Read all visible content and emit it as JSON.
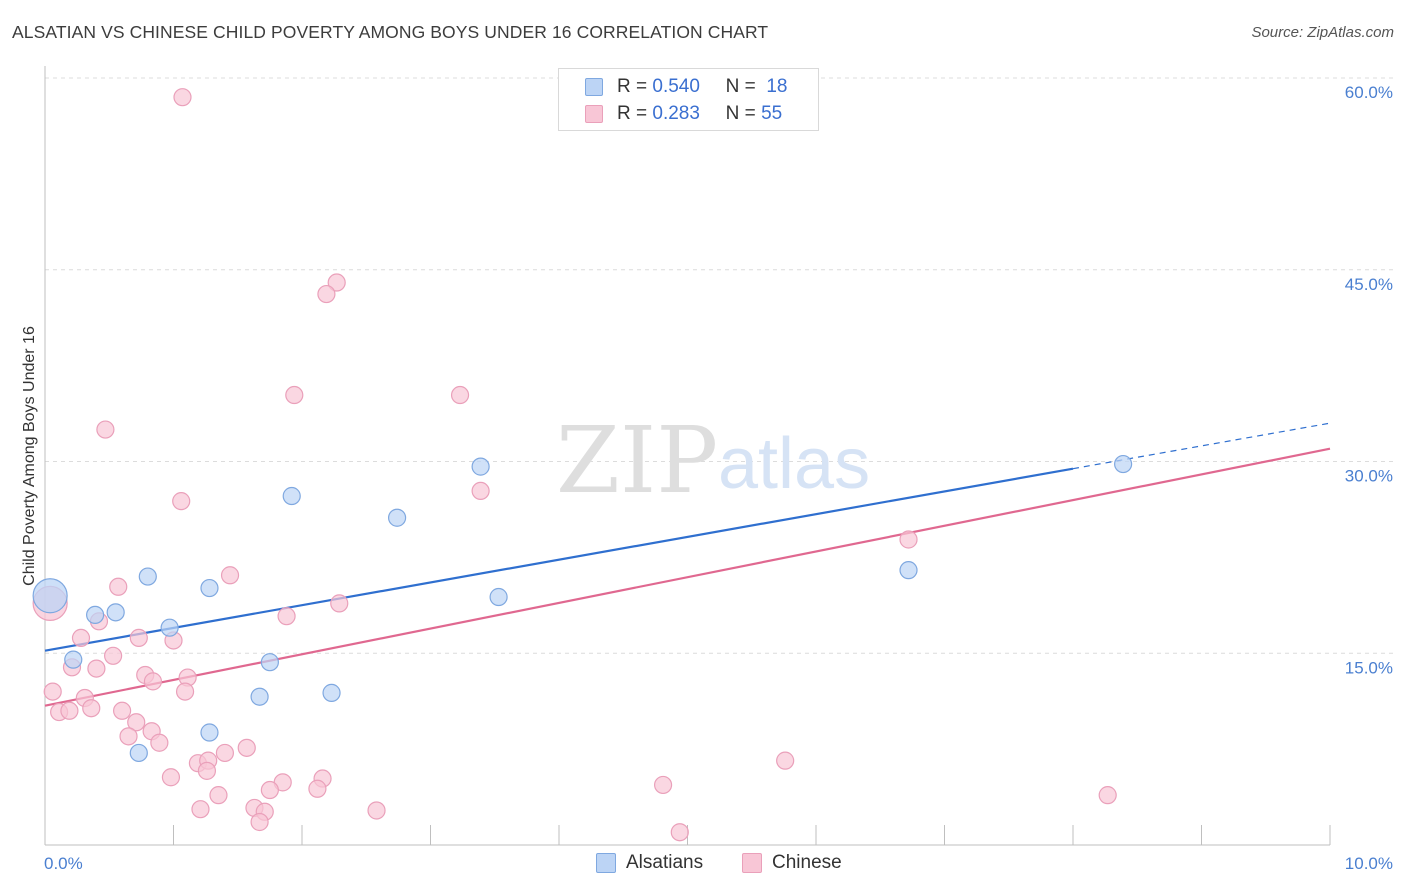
{
  "title": "ALSATIAN VS CHINESE CHILD POVERTY AMONG BOYS UNDER 16 CORRELATION CHART",
  "source": "Source: ZipAtlas.com",
  "watermark": {
    "zip": "ZIP",
    "atlas": "atlas"
  },
  "legend_top": {
    "rows": [
      {
        "r_label": "R =",
        "r_value": "0.540",
        "n_label": "N =",
        "n_value": "18"
      },
      {
        "r_label": "R =",
        "r_value": "0.283",
        "n_label": "N =",
        "n_value": "55"
      }
    ]
  },
  "legend_bottom": {
    "alsatians": "Alsatians",
    "chinese": "Chinese"
  },
  "colors": {
    "alsatian_fill": "#bcd4f5",
    "alsatian_stroke": "#7fa8e0",
    "alsatian_line": "#2f6fcf",
    "chinese_fill": "#f8c6d6",
    "chinese_stroke": "#eaa0ba",
    "chinese_line": "#e06890",
    "tick_text": "#4a7fd0",
    "grid": "#dcdcdc"
  },
  "chart_data": {
    "type": "scatter",
    "title": "ALSATIAN VS CHINESE CHILD POVERTY AMONG BOYS UNDER 16 CORRELATION CHART",
    "xlabel": "",
    "ylabel": "Child Poverty Among Boys Under 16",
    "xlim": [
      0,
      10
    ],
    "ylim": [
      0,
      60
    ],
    "x_tick_labels": [
      {
        "value": 0,
        "label": "0.0%"
      },
      {
        "value": 10,
        "label": "10.0%"
      }
    ],
    "y_tick_labels": [
      {
        "value": 15,
        "label": "15.0%"
      },
      {
        "value": 30,
        "label": "30.0%"
      },
      {
        "value": 45,
        "label": "45.0%"
      },
      {
        "value": 60,
        "label": "60.0%"
      }
    ],
    "y_gridlines": [
      15,
      30,
      45,
      60
    ],
    "series": [
      {
        "name": "Alsatians",
        "r": 0.54,
        "n": 18,
        "trend": {
          "x0": 0,
          "y0": 15.2,
          "x1": 10,
          "y1": 33.0,
          "solid_until": 8.0
        },
        "points": [
          {
            "x": 0.04,
            "y": 19.5,
            "big": true
          },
          {
            "x": 0.22,
            "y": 14.5
          },
          {
            "x": 0.39,
            "y": 18.0
          },
          {
            "x": 0.55,
            "y": 18.2
          },
          {
            "x": 0.8,
            "y": 21.0
          },
          {
            "x": 0.97,
            "y": 17.0
          },
          {
            "x": 1.28,
            "y": 20.1
          },
          {
            "x": 1.92,
            "y": 27.3
          },
          {
            "x": 2.74,
            "y": 25.6
          },
          {
            "x": 3.39,
            "y": 29.6
          },
          {
            "x": 3.53,
            "y": 19.4
          },
          {
            "x": 6.72,
            "y": 21.5
          },
          {
            "x": 8.39,
            "y": 29.8
          },
          {
            "x": 0.73,
            "y": 7.2
          },
          {
            "x": 1.28,
            "y": 8.8
          },
          {
            "x": 1.67,
            "y": 11.6
          },
          {
            "x": 1.75,
            "y": 14.3
          },
          {
            "x": 2.23,
            "y": 11.9
          }
        ]
      },
      {
        "name": "Chinese",
        "r": 0.283,
        "n": 55,
        "trend": {
          "x0": 0,
          "y0": 10.9,
          "x1": 10,
          "y1": 31.0
        },
        "points": [
          {
            "x": 0.04,
            "y": 18.9,
            "big": true
          },
          {
            "x": 1.07,
            "y": 58.5
          },
          {
            "x": 2.27,
            "y": 44.0
          },
          {
            "x": 2.19,
            "y": 43.1
          },
          {
            "x": 1.94,
            "y": 35.2
          },
          {
            "x": 3.23,
            "y": 35.2
          },
          {
            "x": 0.47,
            "y": 32.5
          },
          {
            "x": 1.06,
            "y": 26.9
          },
          {
            "x": 3.39,
            "y": 27.7
          },
          {
            "x": 6.72,
            "y": 23.9
          },
          {
            "x": 0.57,
            "y": 20.2
          },
          {
            "x": 1.44,
            "y": 21.1
          },
          {
            "x": 0.42,
            "y": 17.5
          },
          {
            "x": 1.88,
            "y": 17.9
          },
          {
            "x": 2.29,
            "y": 18.9
          },
          {
            "x": 0.28,
            "y": 16.2
          },
          {
            "x": 0.73,
            "y": 16.2
          },
          {
            "x": 1.0,
            "y": 16.0
          },
          {
            "x": 0.53,
            "y": 14.8
          },
          {
            "x": 0.21,
            "y": 13.9
          },
          {
            "x": 0.4,
            "y": 13.8
          },
          {
            "x": 0.78,
            "y": 13.3
          },
          {
            "x": 0.84,
            "y": 12.8
          },
          {
            "x": 1.11,
            "y": 13.1
          },
          {
            "x": 0.06,
            "y": 12.0
          },
          {
            "x": 0.31,
            "y": 11.5
          },
          {
            "x": 0.36,
            "y": 10.7
          },
          {
            "x": 0.11,
            "y": 10.4
          },
          {
            "x": 0.6,
            "y": 10.5
          },
          {
            "x": 0.71,
            "y": 9.6
          },
          {
            "x": 0.83,
            "y": 8.9
          },
          {
            "x": 0.65,
            "y": 8.5
          },
          {
            "x": 0.89,
            "y": 8.0
          },
          {
            "x": 1.4,
            "y": 7.2
          },
          {
            "x": 1.57,
            "y": 7.6
          },
          {
            "x": 1.19,
            "y": 6.4
          },
          {
            "x": 1.27,
            "y": 6.6
          },
          {
            "x": 0.98,
            "y": 5.3
          },
          {
            "x": 1.26,
            "y": 5.8
          },
          {
            "x": 1.85,
            "y": 4.9
          },
          {
            "x": 2.16,
            "y": 5.2
          },
          {
            "x": 1.75,
            "y": 4.3
          },
          {
            "x": 5.76,
            "y": 6.6
          },
          {
            "x": 4.81,
            "y": 4.7
          },
          {
            "x": 1.35,
            "y": 3.9
          },
          {
            "x": 1.21,
            "y": 2.8
          },
          {
            "x": 1.63,
            "y": 2.9
          },
          {
            "x": 1.71,
            "y": 2.6
          },
          {
            "x": 2.58,
            "y": 2.7
          },
          {
            "x": 1.67,
            "y": 1.8
          },
          {
            "x": 4.94,
            "y": 1.0
          },
          {
            "x": 8.27,
            "y": 3.9
          },
          {
            "x": 0.19,
            "y": 10.5
          },
          {
            "x": 1.09,
            "y": 12.0
          },
          {
            "x": 2.12,
            "y": 4.4
          }
        ]
      }
    ]
  }
}
